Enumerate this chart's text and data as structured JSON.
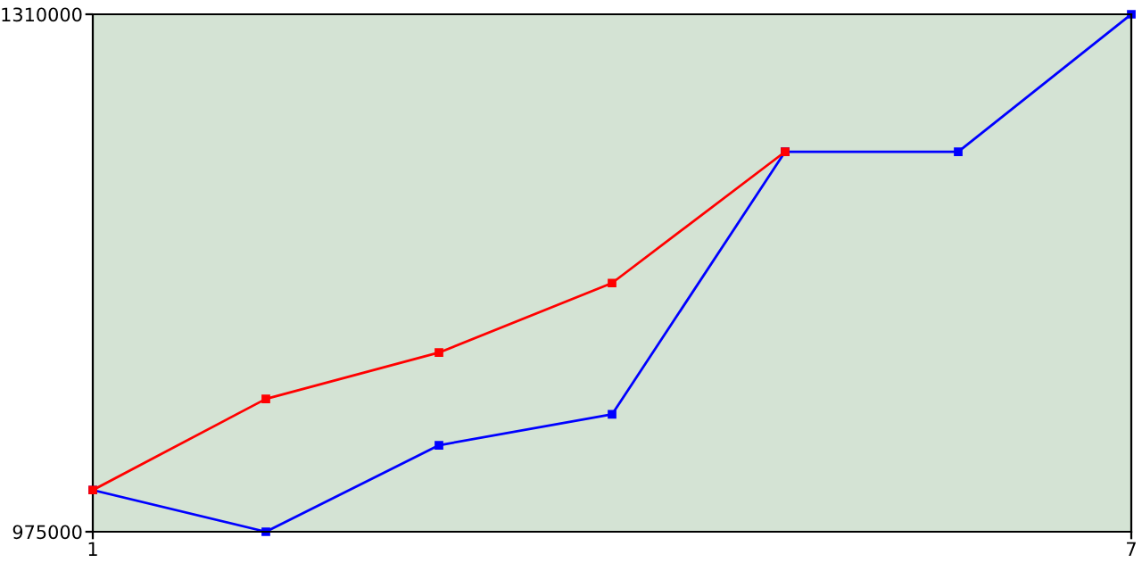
{
  "chart_data": {
    "type": "line",
    "x": [
      1,
      2,
      3,
      4,
      5,
      6,
      7
    ],
    "series": [
      {
        "color": "#ff0000",
        "values": [
          1002000,
          1061000,
          1091000,
          1136000,
          1221000,
          null,
          null
        ]
      },
      {
        "color": "#0000ff",
        "values": [
          1002000,
          975000,
          1031000,
          1051000,
          1221000,
          1221000,
          1310000
        ]
      }
    ],
    "xlim": [
      1,
      7
    ],
    "ylim": [
      975000,
      1310000
    ],
    "xticks": [
      1,
      7
    ],
    "yticks": [
      975000,
      1310000
    ],
    "marker": "square",
    "grid": false,
    "legend": false
  }
}
